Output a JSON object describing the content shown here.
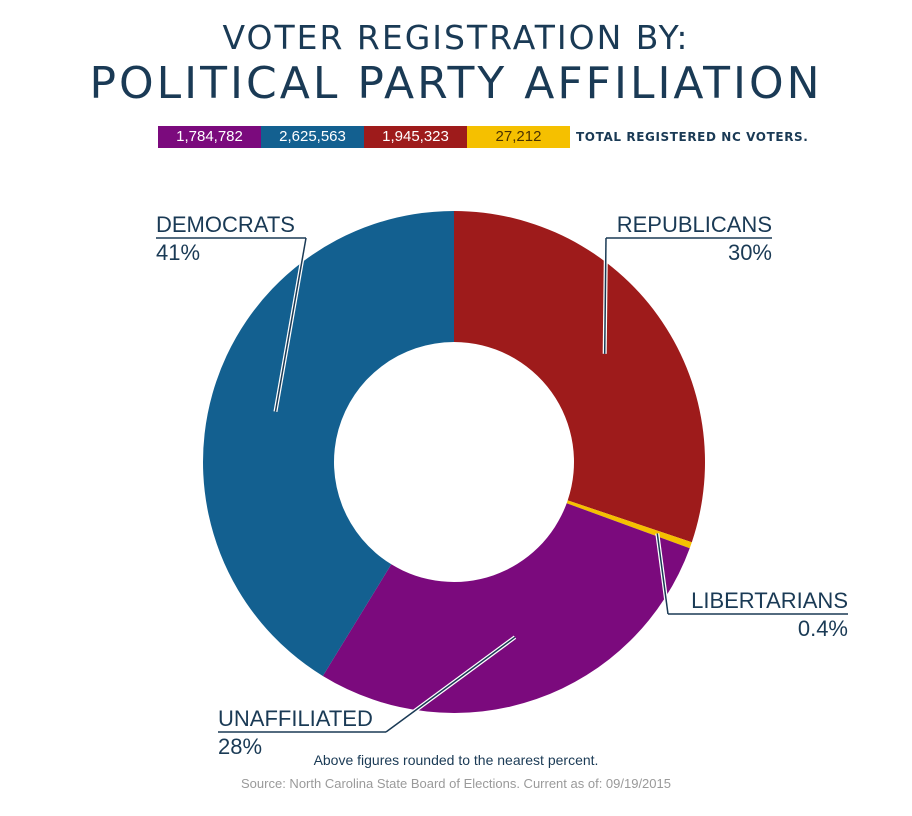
{
  "title_line1": "VOTER REGISTRATION BY:",
  "title_line2": "POLITICAL PARTY AFFILIATION",
  "totals": {
    "unaffiliated": "1,784,782",
    "democrats": "2,625,563",
    "republicans": "1,945,323",
    "libertarians": "27,212",
    "caption": "TOTAL REGISTERED NC VOTERS."
  },
  "footnote": "Above figures rounded to the nearest percent.",
  "source": "Source: North Carolina State Board of Elections. Current as of: 09/19/2015",
  "chart_data": {
    "type": "pie",
    "donut": true,
    "slices": [
      {
        "name": "REPUBLICANS",
        "label": "30%",
        "value": 30,
        "count": 1945323,
        "color": "#9e1b1b"
      },
      {
        "name": "LIBERTARIANS",
        "label": "0.4%",
        "value": 0.4,
        "count": 27212,
        "color": "#f5c000"
      },
      {
        "name": "UNAFFILIATED",
        "label": "28%",
        "value": 28,
        "count": 1784782,
        "color": "#7b0a7d"
      },
      {
        "name": "DEMOCRATS",
        "label": "41%",
        "value": 41,
        "count": 2625563,
        "color": "#136090"
      }
    ]
  }
}
